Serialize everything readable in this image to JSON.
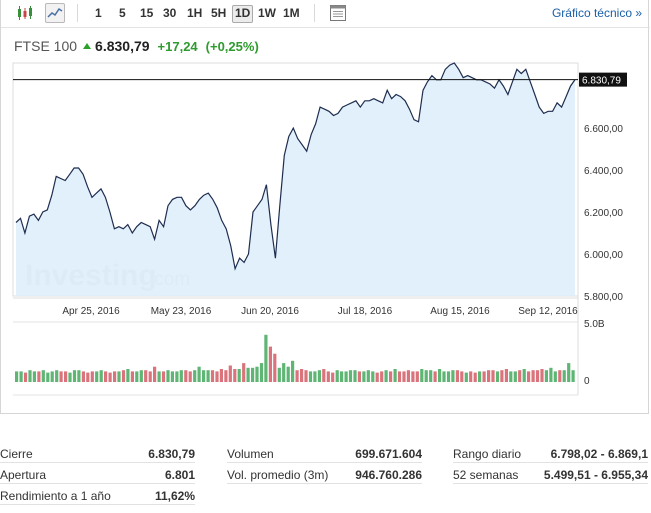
{
  "toolbar": {
    "timeframes": [
      "1",
      "5",
      "15",
      "30",
      "1H",
      "5H",
      "1D",
      "1W",
      "1M"
    ],
    "active_timeframe": "1D",
    "technical_link": "Gráfico técnico »"
  },
  "quote": {
    "name": "FTSE 100",
    "price": "6.830,79",
    "change": "+17,24",
    "change_pct": "(+0,25%)",
    "up_color": "#2e9b2e"
  },
  "watermark": {
    "text": "Investing",
    "suffix": ".com"
  },
  "chart_data": {
    "type": "line",
    "x_tick_labels": [
      "Apr 25, 2016",
      "May 23, 2016",
      "Jun 20, 2016",
      "Jul 18, 2016",
      "Aug 15, 2016",
      "Sep 12, 2016"
    ],
    "y_tick_labels": [
      "5.800,00",
      "6.000,00",
      "6.200,00",
      "6.400,00",
      "6.600,00"
    ],
    "y_ticks": [
      5800,
      6000,
      6200,
      6400,
      6600
    ],
    "ylim": [
      5800,
      6910
    ],
    "last_value_label": "6.830,79",
    "last_value": 6830.79,
    "line_color": "#1e2d4f",
    "fill_color": "#dfeefb",
    "close": [
      6150,
      6170,
      6100,
      6180,
      6190,
      6160,
      6200,
      6210,
      6280,
      6370,
      6360,
      6350,
      6380,
      6410,
      6410,
      6380,
      6320,
      6270,
      6290,
      6310,
      6270,
      6200,
      6120,
      6130,
      6120,
      6140,
      6100,
      6130,
      6150,
      6140,
      6130,
      6070,
      6160,
      6130,
      6230,
      6260,
      6270,
      6270,
      6230,
      6210,
      6230,
      6260,
      6280,
      6290,
      6260,
      6220,
      6160,
      6120,
      6040,
      5930,
      5980,
      5960,
      6000,
      6200,
      6230,
      6260,
      6330,
      6140,
      5980,
      6230,
      6470,
      6560,
      6600,
      6550,
      6520,
      6490,
      6570,
      6620,
      6700,
      6690,
      6680,
      6660,
      6670,
      6700,
      6710,
      6720,
      6730,
      6700,
      6730,
      6730,
      6740,
      6730,
      6720,
      6780,
      6740,
      6760,
      6750,
      6730,
      6690,
      6640,
      6630,
      6780,
      6820,
      6850,
      6830,
      6830,
      6880,
      6900,
      6910,
      6880,
      6840,
      6850,
      6840,
      6830,
      6830,
      6820,
      6810,
      6790,
      6830,
      6800,
      6760,
      6820,
      6880,
      6860,
      6880,
      6820,
      6760,
      6700,
      6670,
      6680,
      6680,
      6720,
      6700,
      6750,
      6800,
      6830.79
    ],
    "volume_axis_labels": [
      "5.0B",
      "0"
    ],
    "volume_axis_values": [
      5000000000,
      0
    ],
    "volume": [
      0.9,
      0.9,
      0.8,
      1.0,
      0.9,
      0.9,
      1.0,
      0.8,
      0.9,
      1.0,
      0.9,
      0.9,
      0.8,
      1.0,
      1.0,
      0.9,
      0.8,
      0.9,
      0.9,
      1.0,
      0.9,
      0.8,
      0.9,
      0.9,
      1.0,
      1.1,
      0.9,
      0.9,
      1.0,
      1.0,
      0.9,
      1.3,
      0.9,
      0.9,
      1.0,
      0.9,
      0.9,
      1.0,
      1.0,
      0.9,
      1.0,
      1.3,
      1.0,
      1.0,
      1.0,
      0.9,
      1.1,
      1.0,
      1.4,
      1.1,
      1.1,
      1.6,
      1.2,
      1.2,
      1.3,
      1.6,
      4.0,
      3.0,
      2.4,
      1.2,
      1.6,
      1.3,
      1.8,
      1.0,
      1.1,
      1.0,
      0.9,
      0.9,
      1.0,
      1.1,
      0.9,
      0.8,
      1.0,
      0.9,
      0.9,
      1.0,
      1.0,
      0.9,
      0.9,
      1.0,
      0.9,
      0.8,
      0.9,
      1.0,
      0.9,
      1.1,
      0.9,
      0.9,
      1.0,
      0.9,
      0.9,
      1.1,
      1.0,
      1.0,
      0.9,
      1.1,
      0.9,
      0.9,
      1.0,
      1.0,
      0.9,
      0.8,
      0.9,
      0.8,
      0.9,
      0.9,
      1.0,
      1.0,
      0.9,
      1.0,
      1.1,
      0.9,
      0.9,
      1.0,
      1.1,
      0.9,
      1.0,
      1.0,
      1.1,
      1.0,
      1.2,
      0.9,
      1.0,
      1.0,
      1.6,
      1.0
    ],
    "volume_colors": [
      "#5fb574",
      "#d9747c"
    ]
  },
  "stats": {
    "col1": [
      {
        "label": "Cierre",
        "value": "6.830,79"
      },
      {
        "label": "Apertura",
        "value": "6.801"
      },
      {
        "label": "Rendimiento a 1 año",
        "value": "11,62%"
      }
    ],
    "col2": [
      {
        "label": "Volumen",
        "value": "699.671.604"
      },
      {
        "label": "Vol. promedio (3m)",
        "value": "946.760.286"
      }
    ],
    "col3": [
      {
        "label": "Rango diario",
        "value": "6.798,02 - 6.869,1"
      },
      {
        "label": "52 semanas",
        "value": "5.499,51 - 6.955,34"
      }
    ]
  }
}
